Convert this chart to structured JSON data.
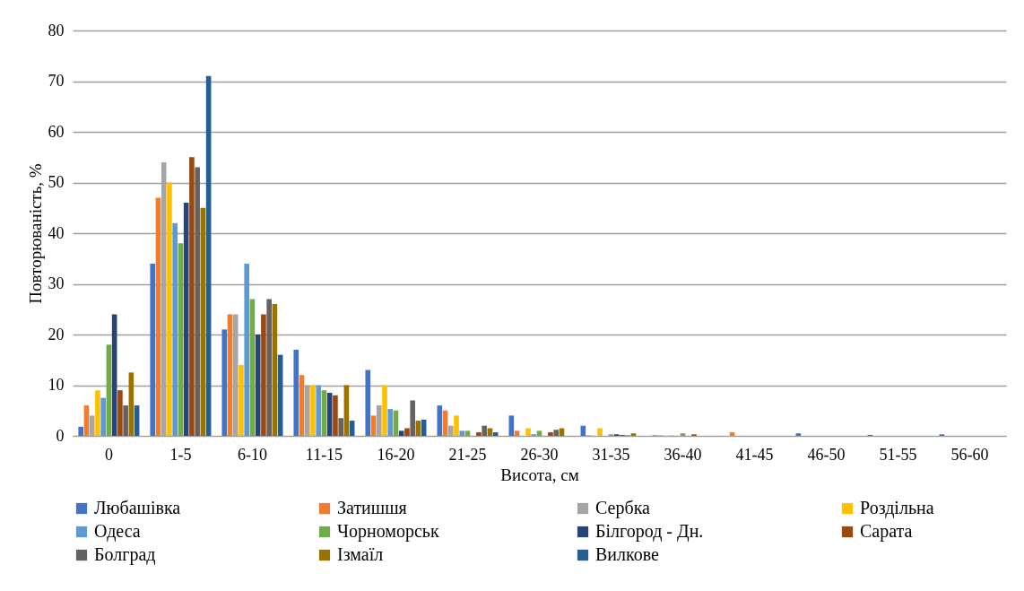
{
  "chart_data": {
    "type": "bar",
    "xlabel": "Висота, см",
    "ylabel": "Повторюваність, %",
    "categories": [
      "0",
      "1-5",
      "6-10",
      "11-15",
      "16-20",
      "21-25",
      "26-30",
      "31-35",
      "36-40",
      "41-45",
      "46-50",
      "51-55",
      "56-60"
    ],
    "series": [
      {
        "name": "Любашівка",
        "color": "#4472c4",
        "values": [
          1.8,
          34,
          21,
          17,
          13,
          6,
          4,
          2,
          0.1,
          0,
          0.5,
          0.2,
          0.3
        ]
      },
      {
        "name": "Затишшя",
        "color": "#ed7d31",
        "values": [
          6,
          47,
          24,
          12,
          4,
          5,
          1,
          0.1,
          0.1,
          0.7,
          0,
          0,
          0
        ]
      },
      {
        "name": "Сербка",
        "color": "#a5a5a5",
        "values": [
          4,
          54,
          24,
          10,
          6,
          2,
          0,
          0,
          0,
          0,
          0,
          0,
          0
        ]
      },
      {
        "name": "Роздільна",
        "color": "#ffc000",
        "values": [
          9,
          50,
          14,
          10,
          10,
          4,
          1.5,
          1.5,
          0.1,
          0,
          0,
          0,
          0
        ]
      },
      {
        "name": "Одеса",
        "color": "#5b9bd5",
        "values": [
          7.5,
          42,
          34,
          10,
          5.3,
          1,
          0.3,
          0,
          0,
          0,
          0,
          0,
          0
        ]
      },
      {
        "name": "Чорноморськ",
        "color": "#70ad47",
        "values": [
          18,
          38,
          27,
          9,
          5,
          1,
          1,
          0.3,
          0.5,
          0,
          0,
          0,
          0
        ]
      },
      {
        "name": "Білгород - Дн.",
        "color": "#264478",
        "values": [
          24,
          46,
          20,
          8.5,
          1,
          0,
          0,
          0.3,
          0,
          0,
          0,
          0,
          0
        ]
      },
      {
        "name": "Сарата",
        "color": "#9e480e",
        "values": [
          9,
          55,
          24,
          8,
          1.5,
          0.7,
          0.7,
          0.2,
          0.3,
          0,
          0,
          0,
          0
        ]
      },
      {
        "name": "Болград",
        "color": "#636363",
        "values": [
          6,
          53,
          27,
          3.5,
          7,
          2,
          1.2,
          0.1,
          0,
          0,
          0,
          0,
          0
        ]
      },
      {
        "name": "Ізмаїл",
        "color": "#997300",
        "values": [
          12.5,
          45,
          26,
          10,
          3,
          1.5,
          1.5,
          0.5,
          0,
          0,
          0,
          0,
          0
        ]
      },
      {
        "name": "Вилкове",
        "color": "#255e91",
        "values": [
          6,
          71,
          16,
          3,
          3.2,
          0.7,
          0,
          0,
          0,
          0,
          0,
          0,
          0
        ]
      }
    ],
    "ylim": [
      0,
      80
    ],
    "yticks": [
      0,
      10,
      20,
      30,
      40,
      50,
      60,
      70,
      80
    ],
    "grid": "y",
    "legend": "bottom"
  }
}
